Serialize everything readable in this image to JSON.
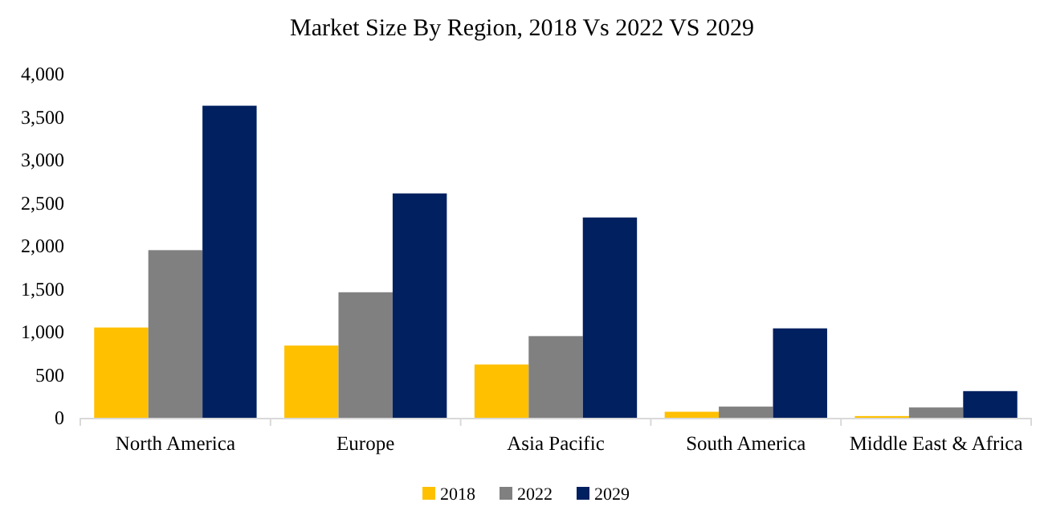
{
  "chart_data": {
    "type": "bar",
    "title": "Market Size By Region, 2018 Vs 2022 VS 2029",
    "categories": [
      "North America",
      "Europe",
      "Asia Pacific",
      "South America",
      "Middle East & Africa"
    ],
    "series": [
      {
        "name": "2018",
        "color": "#ffc000",
        "values": [
          1050,
          840,
          620,
          70,
          20
        ]
      },
      {
        "name": "2022",
        "color": "#808080",
        "values": [
          1950,
          1460,
          950,
          130,
          120
        ]
      },
      {
        "name": "2029",
        "color": "#002060",
        "values": [
          3630,
          2610,
          2330,
          1040,
          310
        ]
      }
    ],
    "ylim": [
      0,
      4000
    ],
    "yticks": [
      {
        "value": 0,
        "label": "0"
      },
      {
        "value": 500,
        "label": "500"
      },
      {
        "value": 1000,
        "label": "1,000"
      },
      {
        "value": 1500,
        "label": "1,500"
      },
      {
        "value": 2000,
        "label": "2,000"
      },
      {
        "value": 2500,
        "label": "2,500"
      },
      {
        "value": 3000,
        "label": "3,000"
      },
      {
        "value": 3500,
        "label": "3,500"
      },
      {
        "value": 4000,
        "label": "4,000"
      }
    ],
    "grid": false,
    "legend": "bottom"
  }
}
